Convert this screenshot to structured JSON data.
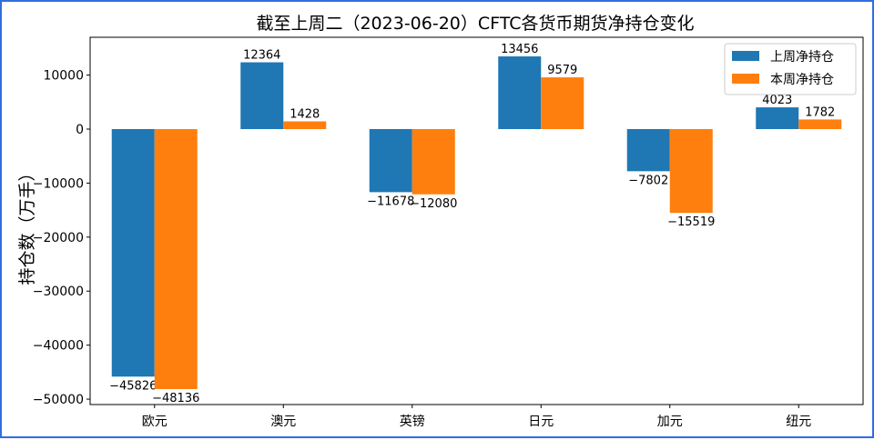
{
  "chart_data": {
    "type": "bar",
    "title": "截至上周二（2023-06-20）CFTC各货币期货净持仓变化",
    "xlabel": "",
    "ylabel": "持仓数（万手）",
    "categories": [
      "欧元",
      "澳元",
      "英镑",
      "日元",
      "加元",
      "纽元"
    ],
    "series": [
      {
        "name": "上周净持仓",
        "color": "#1f77b4",
        "values": [
          -45826,
          12364,
          -11678,
          13456,
          -7802,
          4023
        ]
      },
      {
        "name": "本周净持仓",
        "color": "#ff7f0e",
        "values": [
          -48136,
          1428,
          -12080,
          9579,
          -15519,
          1782
        ]
      }
    ],
    "ylim": [
      -51000,
      17000
    ],
    "yticks": [
      -50000,
      -40000,
      -30000,
      -20000,
      -10000,
      0,
      10000
    ],
    "grid": false,
    "legend_position": "top-right"
  }
}
